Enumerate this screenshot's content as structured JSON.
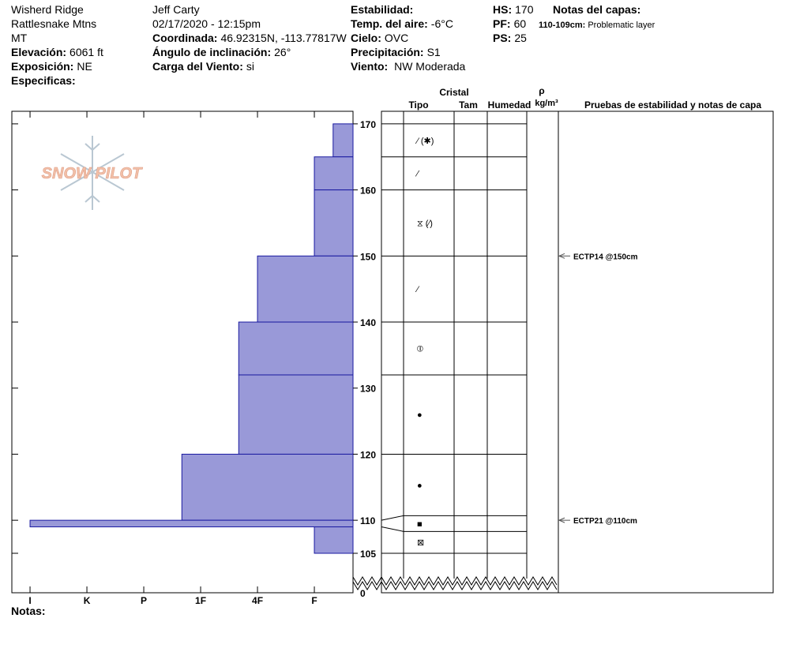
{
  "header": {
    "columns": [
      [
        {
          "value": "Wisherd Ridge"
        },
        {
          "value": "Rattlesnake Mtns"
        },
        {
          "value": "MT"
        },
        {
          "label": "Elevación:",
          "value": "6061 ft"
        },
        {
          "label": "Exposición:",
          "value": "NE"
        },
        {
          "label": "Especificas:"
        }
      ],
      [
        {
          "value": "Jeff Carty"
        },
        {
          "value": "02/17/2020 - 12:15pm"
        },
        {
          "label": "Coordinada:",
          "value": "46.92315N, -113.77817W"
        },
        {
          "label": "Ángulo de inclinación:",
          "value": "26°"
        },
        {
          "label": "Carga del Viento:",
          "value": "si"
        }
      ],
      [
        {
          "label": "Estabilidad:"
        },
        {
          "label": "Temp. del aire:",
          "value": "-6°C"
        },
        {
          "label": "Cielo:",
          "value": "OVC"
        },
        {
          "label": "Precipitación:",
          "value": "S1"
        },
        {
          "label": "Viento:",
          "value": " NW Moderada"
        }
      ],
      [
        {
          "label": "HS:",
          "value": "170"
        },
        {
          "label": "PF:",
          "value": "60"
        },
        {
          "label": "PS:",
          "value": "25"
        }
      ]
    ],
    "layer_notes": {
      "title": "Notas del capas:",
      "items": [
        {
          "label": "110-109cm:",
          "value": "Problematic layer"
        }
      ]
    }
  },
  "logo": "SNOW PILOT",
  "columns": {
    "crystal": "Cristal",
    "type": "Tipo",
    "size": "Tam",
    "moisture": "Humedad",
    "rho": "ρ",
    "density_unit": "kg/m³",
    "tests": "Pruebas de estabilidad y notas de capa"
  },
  "chart_data": {
    "type": "hardness_profile",
    "xlim": [
      6.32,
      0.32
    ],
    "xticks": [
      {
        "value": 6,
        "label": "I"
      },
      {
        "value": 5,
        "label": "K"
      },
      {
        "value": 4,
        "label": "P"
      },
      {
        "value": 3,
        "label": "1F"
      },
      {
        "value": 2,
        "label": "4F"
      },
      {
        "value": 1,
        "label": "F"
      }
    ],
    "ylim": [
      105,
      171.9
    ],
    "yticks": [
      105,
      110,
      120,
      130,
      140,
      150,
      160,
      170
    ],
    "break_tick": 0,
    "color": "#9999d8",
    "layers": [
      {
        "top": 170,
        "bottom": 165,
        "hardness": 0.67,
        "grain": "⁄ (✱)"
      },
      {
        "top": 165,
        "bottom": 160,
        "hardness": 1,
        "grain": "⁄"
      },
      {
        "top": 160,
        "bottom": 150,
        "hardness": 1,
        "grain": "⧖ (⁄)"
      },
      {
        "top": 150,
        "bottom": 140,
        "hardness": 2,
        "grain": "⁄"
      },
      {
        "top": 140,
        "bottom": 132,
        "hardness": 2.33,
        "grain": "⦶"
      },
      {
        "top": 132,
        "bottom": 120,
        "hardness": 2.33,
        "grain": "●"
      },
      {
        "top": 120,
        "bottom": 110,
        "hardness": 3.33,
        "grain": "●"
      },
      {
        "top": 110,
        "bottom": 109,
        "hardness": 6,
        "grain": "■"
      },
      {
        "top": 109,
        "bottom": 105,
        "hardness": 1,
        "grain": "⊠"
      }
    ]
  },
  "tests": [
    {
      "depth": 150,
      "label": "ECTP14 @150cm"
    },
    {
      "depth": 110,
      "label": "ECTP21 @110cm"
    }
  ],
  "notes": "Notas:"
}
